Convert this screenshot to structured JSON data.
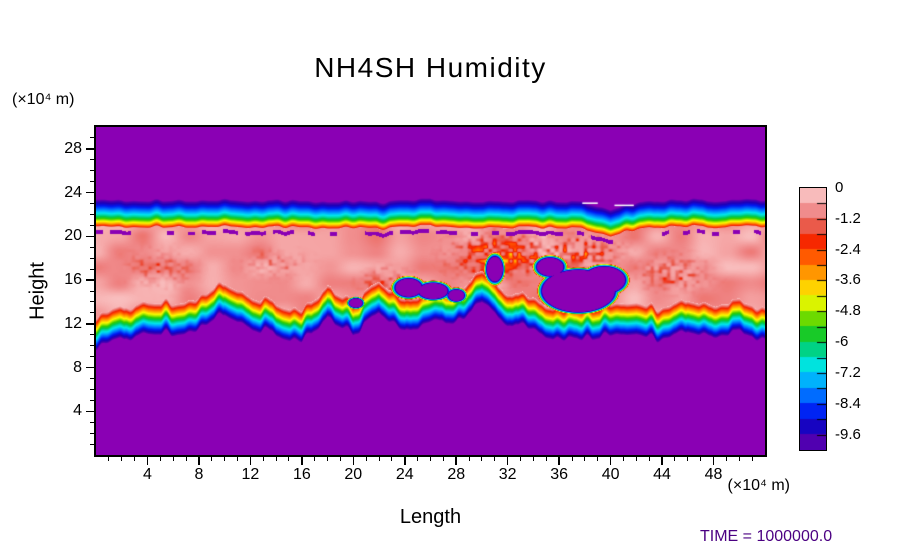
{
  "chart_data": {
    "type": "heatmap",
    "title": "NH4SH Humidity",
    "xlabel": "Length",
    "ylabel": "Height",
    "x_unit_label": "(×10⁴ m)",
    "y_unit_label": "(×10⁴ m)",
    "annotation": {
      "text": "TIME =  1000000.0",
      "color": "#4b0082"
    },
    "xlim": [
      0,
      52
    ],
    "ylim": [
      0,
      30
    ],
    "x_major_ticks": [
      4,
      8,
      12,
      16,
      20,
      24,
      28,
      32,
      36,
      40,
      44,
      48
    ],
    "x_minor_step": 1,
    "y_major_ticks": [
      4,
      8,
      12,
      16,
      20,
      24,
      28
    ],
    "y_minor_step": 1,
    "value_range": [
      0,
      -10.2
    ],
    "legend_position": "right",
    "grid": false,
    "colorbar": {
      "tick_labels": [
        "0",
        "-1.2",
        "-2.4",
        "-3.6",
        "-4.8",
        "-6",
        "-7.2",
        "-8.4",
        "-9.6"
      ],
      "tick_values": [
        0,
        -1.2,
        -2.4,
        -3.6,
        -4.8,
        -6,
        -7.2,
        -8.4,
        -9.6
      ],
      "segment_step": 0.6
    },
    "colormap": [
      {
        "v": 0.0,
        "c": "#fbd3d3"
      },
      {
        "v": -0.5,
        "c": "#f6abab"
      },
      {
        "v": -1.0,
        "c": "#ef8484"
      },
      {
        "v": -1.5,
        "c": "#ea5a4a"
      },
      {
        "v": -2.0,
        "c": "#f42000"
      },
      {
        "v": -2.6,
        "c": "#ff5000"
      },
      {
        "v": -3.2,
        "c": "#ff8c00"
      },
      {
        "v": -3.8,
        "c": "#ffc800"
      },
      {
        "v": -4.3,
        "c": "#fbfb00"
      },
      {
        "v": -4.8,
        "c": "#a8e800"
      },
      {
        "v": -5.4,
        "c": "#30cc00"
      },
      {
        "v": -6.0,
        "c": "#00c850"
      },
      {
        "v": -6.5,
        "c": "#00d8a8"
      },
      {
        "v": -7.0,
        "c": "#00e6ec"
      },
      {
        "v": -7.6,
        "c": "#00a8ff"
      },
      {
        "v": -8.2,
        "c": "#0060ff"
      },
      {
        "v": -8.8,
        "c": "#0018f0"
      },
      {
        "v": -9.4,
        "c": "#1c00b8"
      },
      {
        "v": -9.9,
        "c": "#5000b0"
      },
      {
        "v": -10.2,
        "c": "#8a00b4"
      }
    ],
    "field": {
      "description": "Humidity band between heights ~12 and ~21 (×10⁴ m); values near 0 (pink) inside the band, falling to background -10 (purple) above ~23.4 and below ~11, with ragged warm-colored fringes, purple intrusion blobs inside the band and a speckled purple row just under the band top.",
      "x_step": 2,
      "edge_start": -0.3,
      "top_width": 2.5,
      "bottom_width": 2.9,
      "top_power": 0.55,
      "bottom_power": 0.85,
      "interior_base": -0.25,
      "interior_noise_amp": 0.95,
      "background_value": -10.2,
      "band_top": [
        20.9,
        20.85,
        20.8,
        20.9,
        20.8,
        20.9,
        20.8,
        20.85,
        20.8,
        20.7,
        20.8,
        20.6,
        20.8,
        20.9,
        20.8,
        20.7,
        20.75,
        20.8,
        20.7,
        20.6,
        20.0,
        20.6,
        20.8,
        20.9,
        20.8,
        20.9,
        20.9
      ],
      "band_bottom": [
        12.6,
        13.4,
        14.2,
        14.0,
        14.4,
        15.8,
        14.6,
        14.0,
        13.2,
        15.2,
        14.0,
        15.8,
        14.2,
        15.0,
        15.2,
        16.8,
        15.0,
        14.4,
        13.6,
        13.5,
        13.8,
        14.0,
        13.4,
        14.2,
        13.8,
        14.0,
        13.6
      ],
      "blobs": [
        [
          24.3,
          15.3,
          1.0,
          0.8
        ],
        [
          26.2,
          15.0,
          1.1,
          0.7
        ],
        [
          28.0,
          14.6,
          0.6,
          0.5
        ],
        [
          37.5,
          15.0,
          2.8,
          1.9
        ],
        [
          39.5,
          16.0,
          1.6,
          1.2
        ],
        [
          35.3,
          17.2,
          1.0,
          0.8
        ],
        [
          20.2,
          13.9,
          0.5,
          0.4
        ],
        [
          31.0,
          17.0,
          0.6,
          1.1
        ]
      ],
      "rough_patches": [
        [
          31.5,
          18.2,
          3.0,
          1.6,
          1.5
        ],
        [
          37.5,
          18.6,
          2.5,
          1.2,
          1.3
        ],
        [
          45.0,
          16.6,
          2.2,
          1.3,
          0.8
        ],
        [
          22.5,
          15.9,
          1.5,
          1.0,
          0.9
        ],
        [
          14.0,
          17.5,
          2.0,
          1.0,
          0.5
        ],
        [
          5.0,
          17.0,
          2.0,
          1.5,
          0.5
        ]
      ],
      "speckle_cell": 0.55,
      "speckle_density": 0.5,
      "white_dashes": [
        [
          37.8,
          23.1,
          1.2
        ],
        [
          40.3,
          22.9,
          1.5
        ]
      ]
    }
  }
}
